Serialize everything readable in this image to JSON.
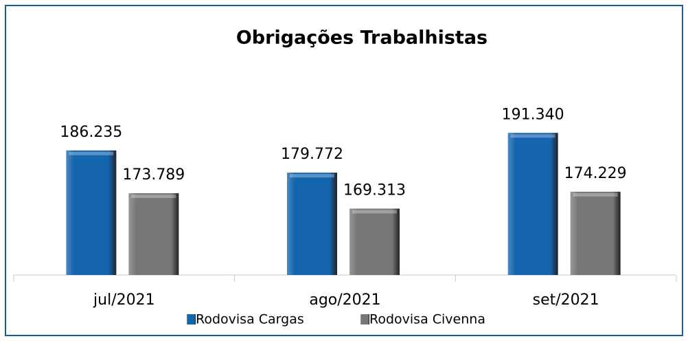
{
  "chart_data": {
    "type": "bar",
    "title": "Obrigações Trabalhistas",
    "categories": [
      "jul/2021",
      "ago/2021",
      "set/2021"
    ],
    "series": [
      {
        "name": "Rodovisa Cargas",
        "color": "#1464ae",
        "values": [
          186235,
          179772,
          191340
        ],
        "value_labels": [
          "186.235",
          "179.772",
          "191.340"
        ]
      },
      {
        "name": "Rodovisa Civenna",
        "color": "#777777",
        "values": [
          173789,
          169313,
          174229
        ],
        "value_labels": [
          "173.789",
          "169.313",
          "174.229"
        ]
      }
    ],
    "ylim": [
      150000,
      200000
    ]
  }
}
